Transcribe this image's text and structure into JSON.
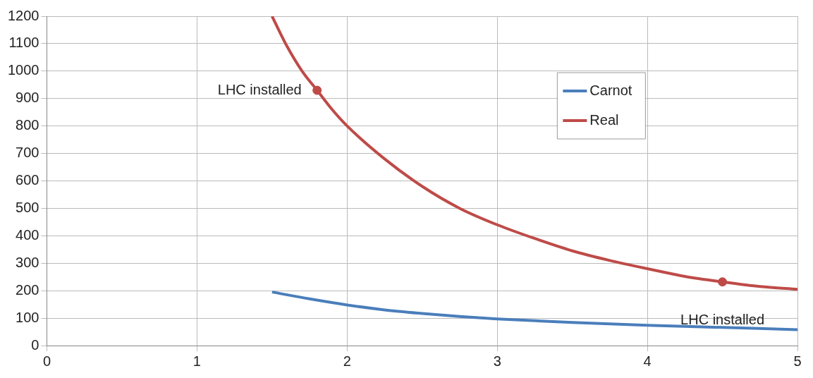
{
  "chart_data": {
    "type": "line",
    "xlim": [
      0,
      5
    ],
    "ylim": [
      0,
      1200
    ],
    "xticks": [
      0,
      1,
      2,
      3,
      4,
      5
    ],
    "yticks": [
      0,
      100,
      200,
      300,
      400,
      500,
      600,
      700,
      800,
      900,
      1000,
      1100,
      1200
    ],
    "grid": true,
    "legend": "top right",
    "marker": "none",
    "line_style": "solid",
    "series": [
      {
        "name": "Carnot",
        "color": "#4a7ebb",
        "x": [
          1.5,
          1.75,
          2,
          2.25,
          2.5,
          2.75,
          3,
          3.5,
          4,
          4.5,
          5
        ],
        "values": [
          195,
          170,
          148,
          130,
          117,
          106,
          97,
          84,
          74,
          66,
          58
        ]
      },
      {
        "name": "Real",
        "color": "#be4b48",
        "x": [
          1.5,
          1.6,
          1.7,
          1.8,
          1.9,
          2,
          2.25,
          2.5,
          2.75,
          3,
          3.25,
          3.5,
          3.75,
          4,
          4.25,
          4.5,
          4.75,
          5
        ],
        "values": [
          1200,
          1090,
          1000,
          930,
          860,
          800,
          680,
          580,
          500,
          440,
          390,
          345,
          310,
          280,
          252,
          232,
          215,
          205
        ]
      },
      {
        "type": "scatter",
        "color": "#be4b48",
        "marker": "circle",
        "x": [
          1.8,
          4.5
        ],
        "values": [
          930,
          232
        ]
      }
    ],
    "annotations": [
      {
        "text": "LHC installed",
        "x": 1.8,
        "y": 930
      },
      {
        "text": "LHC installed",
        "x": 4.5,
        "y": 232
      }
    ]
  }
}
